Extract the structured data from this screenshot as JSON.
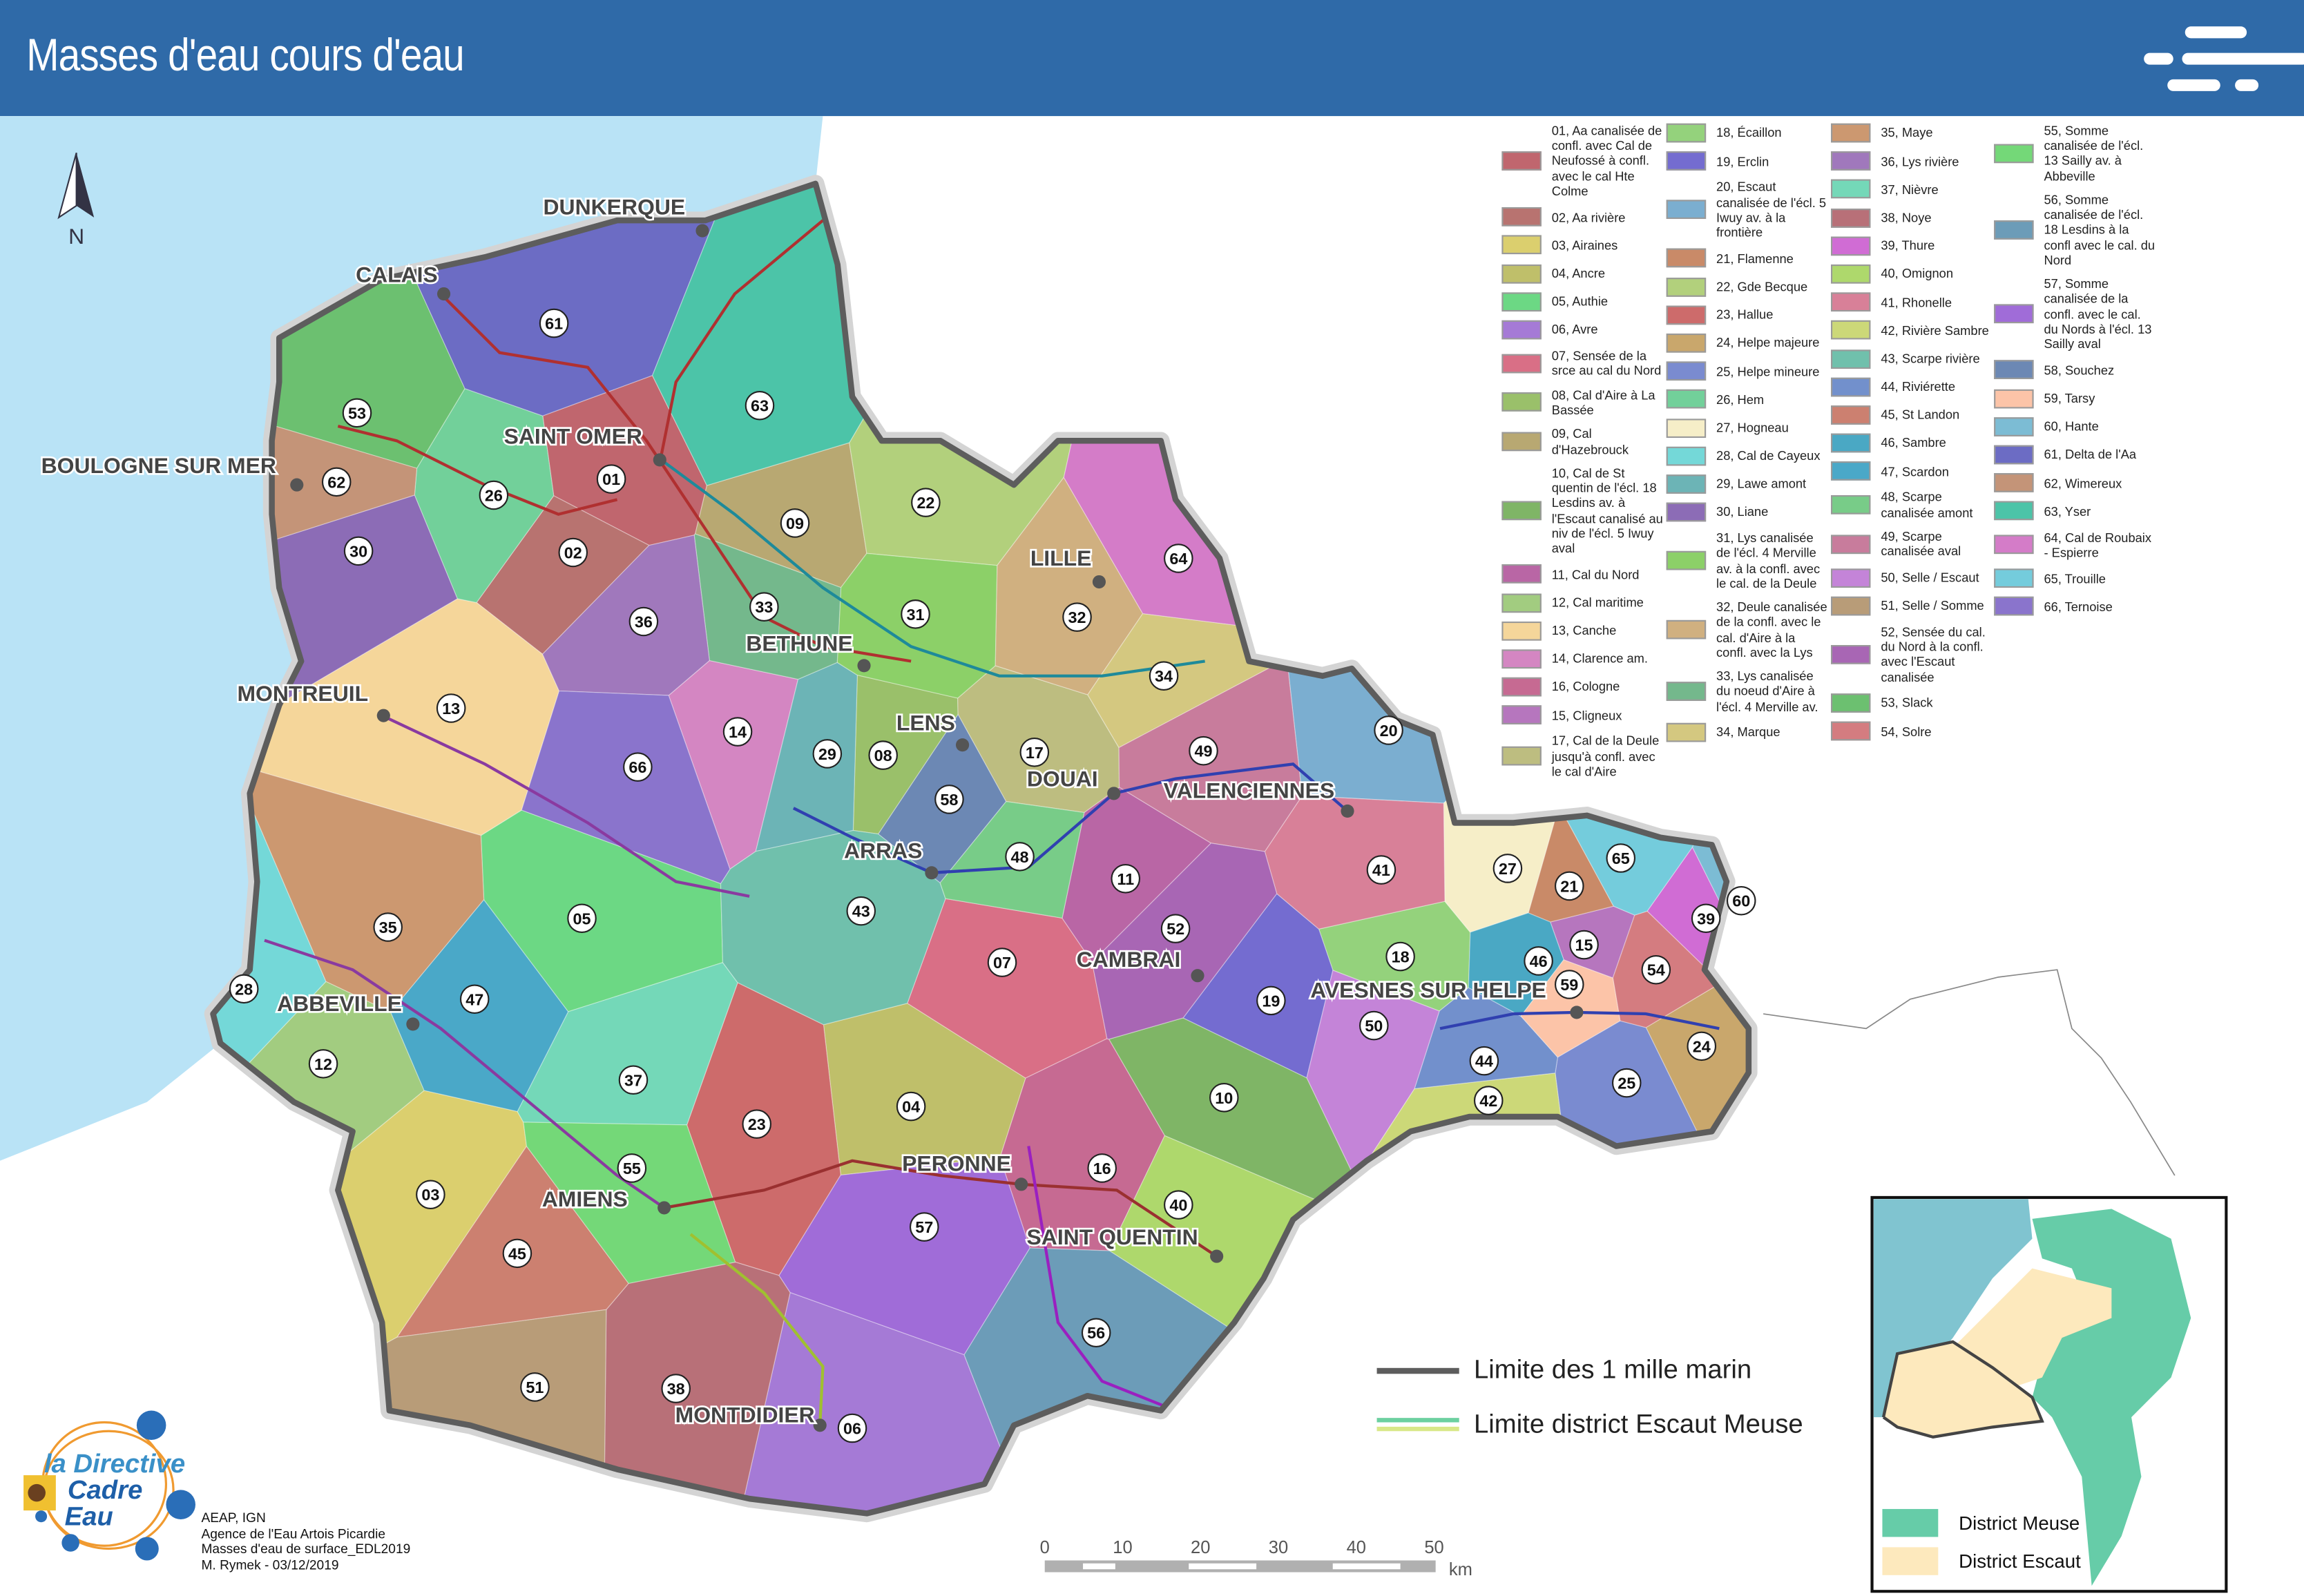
{
  "header": {
    "title": "Masses d'eau cours d'eau",
    "icon": "dashes-logo-icon"
  },
  "colors": {
    "header": "#2f6aa8",
    "sea": "#b9e3f6",
    "outline": "#5d5d5d",
    "meuse": "#66cca8",
    "escaut": "#fde9bd"
  },
  "legend": {
    "columns": [
      [
        {
          "id": "01",
          "label": "01, Aa canalisée de confl. avec Cal de Neufossé à confl. avec le cal Hte Colme",
          "color": "#c0666e"
        },
        {
          "id": "02",
          "label": "02, Aa rivière",
          "color": "#b87370"
        },
        {
          "id": "03",
          "label": "03, Airaines",
          "color": "#dbcf6e"
        },
        {
          "id": "04",
          "label": "04, Ancre",
          "color": "#bfbf6a"
        },
        {
          "id": "05",
          "label": "05, Authie",
          "color": "#6cd884"
        },
        {
          "id": "06",
          "label": "06, Avre",
          "color": "#a57ad6"
        },
        {
          "id": "07",
          "label": "07, Sensée de la srce au cal du Nord",
          "color": "#d96f86"
        },
        {
          "id": "08",
          "label": "08, Cal d'Aire à La Bassée",
          "color": "#9ac06a"
        },
        {
          "id": "09",
          "label": "09, Cal d'Hazebrouck",
          "color": "#b8a872"
        },
        {
          "id": "10",
          "label": "10, Cal de St quentin de l'écl. 18 Lesdins av. à l'Escaut canalisé au niv de l'écl. 5 Iwuy aval",
          "color": "#7fb566"
        },
        {
          "id": "11",
          "label": "11, Cal du Nord",
          "color": "#b966a5"
        },
        {
          "id": "12",
          "label": "12, Cal maritime",
          "color": "#a2cc80"
        },
        {
          "id": "13",
          "label": "13, Canche",
          "color": "#f5d69a"
        },
        {
          "id": "14",
          "label": "14, Clarence am.",
          "color": "#d486c2"
        },
        {
          "id": "16",
          "label": "16, Cologne",
          "color": "#c66a92"
        },
        {
          "id": "15",
          "label": "15, Cligneux",
          "color": "#b676be"
        },
        {
          "id": "17",
          "label": "17, Cal de la Deule jusqu'à confl. avec le cal d'Aire",
          "color": "#bdbd80"
        }
      ],
      [
        {
          "id": "18",
          "label": "18, Écaillon",
          "color": "#94d27c"
        },
        {
          "id": "19",
          "label": "19, Erclin",
          "color": "#746cd0"
        },
        {
          "id": "20",
          "label": "20, Escaut canalisée de l'écl. 5 Iwuy av. à la frontière",
          "color": "#7baed0"
        },
        {
          "id": "21",
          "label": "21, Flamenne",
          "color": "#c98a68"
        },
        {
          "id": "22",
          "label": "22, Gde Becque",
          "color": "#b2d07c"
        },
        {
          "id": "23",
          "label": "23, Hallue",
          "color": "#cd6b6b"
        },
        {
          "id": "24",
          "label": "24, Helpe majeure",
          "color": "#c9a76c"
        },
        {
          "id": "25",
          "label": "25, Helpe mineure",
          "color": "#7a8bd0"
        },
        {
          "id": "26",
          "label": "26, Hem",
          "color": "#72d09a"
        },
        {
          "id": "27",
          "label": "27, Hogneau",
          "color": "#f6eec8"
        },
        {
          "id": "28",
          "label": "28, Cal de Cayeux",
          "color": "#74d8d8"
        },
        {
          "id": "29",
          "label": "29, Lawe amont",
          "color": "#6cb4b6"
        },
        {
          "id": "30",
          "label": "30, Liane",
          "color": "#8c6cb6"
        },
        {
          "id": "31",
          "label": "31, Lys canalisée de l'écl. 4 Merville av. à la confl. avec le cal. de la Deule",
          "color": "#8cd068"
        },
        {
          "id": "32",
          "label": "32, Deule canalisée de la confl. avec le cal. d'Aire à la confl. avec la Lys",
          "color": "#d0b080"
        },
        {
          "id": "33",
          "label": "33, Lys canalisée du noeud d'Aire à l'écl. 4 Merville av.",
          "color": "#74b88c"
        },
        {
          "id": "34",
          "label": "34, Marque",
          "color": "#d4c880"
        }
      ],
      [
        {
          "id": "35",
          "label": "35, Maye",
          "color": "#cc9870"
        },
        {
          "id": "36",
          "label": "36, Lys rivière",
          "color": "#a078bc"
        },
        {
          "id": "37",
          "label": "37, Nièvre",
          "color": "#74d8b8"
        },
        {
          "id": "38",
          "label": "38, Noye",
          "color": "#b87078"
        },
        {
          "id": "39",
          "label": "39, Thure",
          "color": "#d06cd4"
        },
        {
          "id": "40",
          "label": "40, Omignon",
          "color": "#aed86c"
        },
        {
          "id": "41",
          "label": "41, Rhonelle",
          "color": "#d88098"
        },
        {
          "id": "42",
          "label": "42, Rivière Sambre",
          "color": "#ccd878"
        },
        {
          "id": "43",
          "label": "43, Scarpe rivière",
          "color": "#70c0ac"
        },
        {
          "id": "44",
          "label": "44, Riviérette",
          "color": "#7290cc"
        },
        {
          "id": "45",
          "label": "45, St Landon",
          "color": "#cc8070"
        },
        {
          "id": "46",
          "label": "46, Sambre",
          "color": "#4aa8c4"
        },
        {
          "id": "47",
          "label": "47, Scardon",
          "color": "#4aa8c8"
        },
        {
          "id": "48",
          "label": "48, Scarpe canalisée amont",
          "color": "#78cc88"
        },
        {
          "id": "49",
          "label": "49, Scarpe canalisée aval",
          "color": "#c87c9c"
        },
        {
          "id": "50",
          "label": "50, Selle / Escaut",
          "color": "#c484d8"
        },
        {
          "id": "51",
          "label": "51, Selle / Somme",
          "color": "#b89c78"
        },
        {
          "id": "52",
          "label": "52, Sensée du cal. du Nord à la confl. avec l'Escaut canalisée",
          "color": "#a866b4"
        },
        {
          "id": "53",
          "label": "53, Slack",
          "color": "#6cc070"
        },
        {
          "id": "54",
          "label": "54, Solre",
          "color": "#d47c80"
        }
      ],
      [
        {
          "id": "55",
          "label": "55, Somme canalisée de l'écl. 13 Sailly av. à Abbeville",
          "color": "#74d878"
        },
        {
          "id": "56",
          "label": "56, Somme canalisée de l'écl. 18 Lesdins à la confl avec le cal. du Nord",
          "color": "#6c9cb8"
        },
        {
          "id": "57",
          "label": "57, Somme canalisée de la confl. avec le cal. du Nords à l'écl. 13 Sailly aval",
          "color": "#a06cd8"
        },
        {
          "id": "58",
          "label": "58, Souchez",
          "color": "#6c88b4"
        },
        {
          "id": "59",
          "label": "59, Tarsy",
          "color": "#fcc4a8"
        },
        {
          "id": "60",
          "label": "60, Hante",
          "color": "#7cbcd4"
        },
        {
          "id": "61",
          "label": "61, Delta de l'Aa",
          "color": "#6c6cc4"
        },
        {
          "id": "62",
          "label": "62, Wimereux",
          "color": "#c49478"
        },
        {
          "id": "63",
          "label": "63, Yser",
          "color": "#4cc4a8"
        },
        {
          "id": "64",
          "label": "64, Cal de Roubaix - Espierre",
          "color": "#d47cc8"
        },
        {
          "id": "65",
          "label": "65, Trouille",
          "color": "#74ccdc"
        },
        {
          "id": "66",
          "label": "66, Ternoise",
          "color": "#8a74cc"
        }
      ]
    ]
  },
  "map": {
    "labels": [
      "01",
      "02",
      "03",
      "04",
      "05",
      "06",
      "07",
      "08",
      "09",
      "10",
      "11",
      "12",
      "13",
      "14",
      "15",
      "16",
      "17",
      "18",
      "19",
      "20",
      "21",
      "22",
      "23",
      "24",
      "25",
      "26",
      "27",
      "28",
      "29",
      "30",
      "31",
      "32",
      "33",
      "34",
      "35",
      "36",
      "37",
      "38",
      "39",
      "40",
      "41",
      "42",
      "43",
      "44",
      "45",
      "46",
      "47",
      "48",
      "49",
      "50",
      "51",
      "52",
      "53",
      "54",
      "55",
      "56",
      "57",
      "58",
      "59",
      "60",
      "61",
      "62",
      "63",
      "64",
      "65",
      "66"
    ],
    "cities": [
      "DUNKERQUE",
      "CALAIS",
      "SAINT OMER",
      "BOULOGNE SUR MER",
      "LILLE",
      "BETHUNE",
      "MONTREUIL",
      "LENS",
      "DOUAI",
      "VALENCIENNES",
      "ARRAS",
      "CAMBRAI",
      "AVESNES SUR HELPE",
      "ABBEVILLE",
      "AMIENS",
      "PERONNE",
      "SAINT QUENTIN",
      "MONTDIDIER"
    ],
    "north_label": "N"
  },
  "map_legend": {
    "sea_limit": "Limite des 1 mille marin",
    "district_limit": "Limite district Escaut Meuse"
  },
  "scale_bar": {
    "ticks": [
      "0",
      "10",
      "20",
      "30",
      "40",
      "50"
    ],
    "unit": "km"
  },
  "inset": {
    "meuse": "District Meuse",
    "escaut": "District Escaut"
  },
  "credits": {
    "logo_text": "la Directive Cadre Eau",
    "lines": [
      "AEAP, IGN",
      "Agence de l'Eau Artois Picardie",
      "Masses d'eau de surface_EDL2019",
      "M. Rymek - 03/12/2019"
    ]
  }
}
